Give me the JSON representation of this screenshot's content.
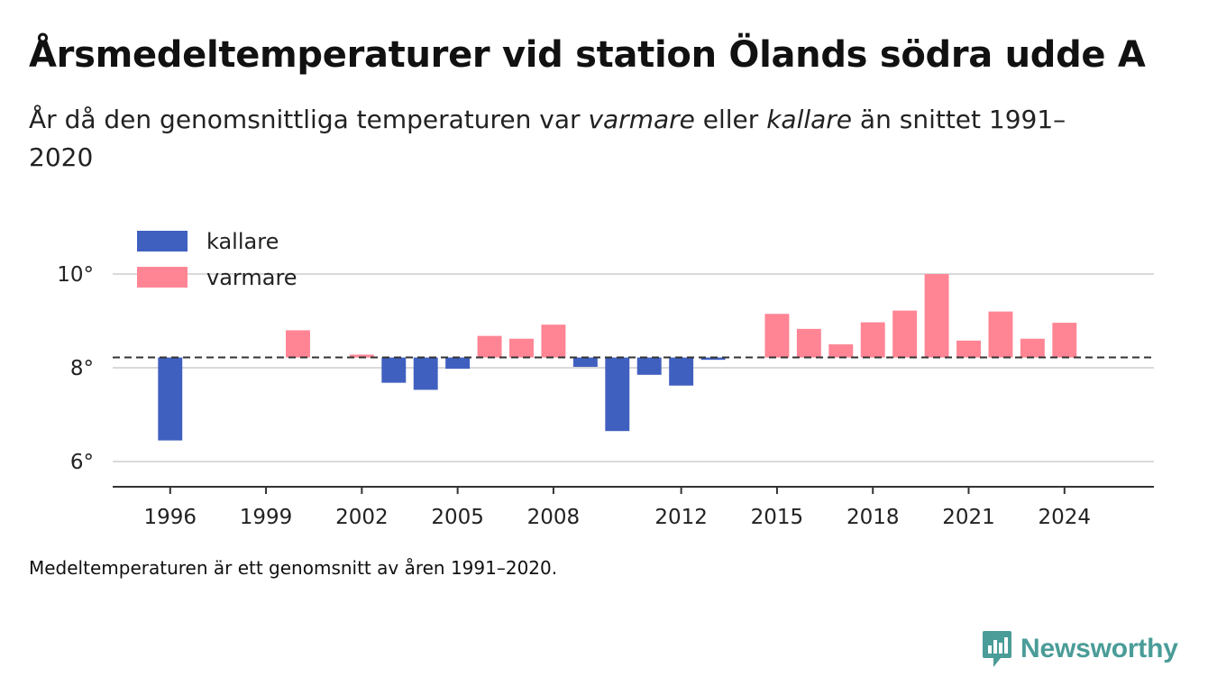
{
  "title": "Årsmedeltemperaturer vid station Ölands södra udde A",
  "subtitle": {
    "part1": "År då den genomsnittliga temperaturen var ",
    "warm_word": "varmare",
    "part2": " eller ",
    "cold_word": "kallare",
    "part3": " än snittet 1991–2020"
  },
  "footnote": "Medeltemperaturen är ett genomsnitt av åren 1991–2020.",
  "brand": {
    "name": "Newsworthy",
    "color": "#4a9c98"
  },
  "chart_data": {
    "type": "bar",
    "baseline": 8.22,
    "ylim": [
      5.5,
      10.5
    ],
    "yticks": [
      {
        "value": 6,
        "label": "6°"
      },
      {
        "value": 8,
        "label": "8°"
      },
      {
        "value": 10,
        "label": "10°"
      }
    ],
    "xlim": [
      1994.2,
      2026.8
    ],
    "xticks": [
      1996,
      1999,
      2002,
      2005,
      2008,
      2012,
      2015,
      2018,
      2021,
      2024
    ],
    "grid": "horizontal",
    "legend": {
      "position": "top-left",
      "entries": [
        {
          "label": "kallare",
          "color": "#4060c0"
        },
        {
          "label": "varmare",
          "color": "#ff8595"
        }
      ]
    },
    "colors": {
      "colder": "#4060c0",
      "warmer": "#ff8595"
    },
    "years": [
      1996,
      2000,
      2002,
      2003,
      2004,
      2005,
      2006,
      2007,
      2008,
      2009,
      2010,
      2011,
      2012,
      2013,
      2015,
      2016,
      2017,
      2018,
      2019,
      2020,
      2021,
      2022,
      2023,
      2024
    ],
    "values": [
      6.45,
      8.8,
      8.28,
      7.68,
      7.53,
      7.98,
      8.68,
      8.62,
      8.92,
      8.02,
      6.65,
      7.85,
      7.62,
      8.17,
      9.15,
      8.83,
      8.5,
      8.97,
      9.22,
      10.0,
      8.58,
      9.2,
      8.62,
      8.96
    ]
  }
}
